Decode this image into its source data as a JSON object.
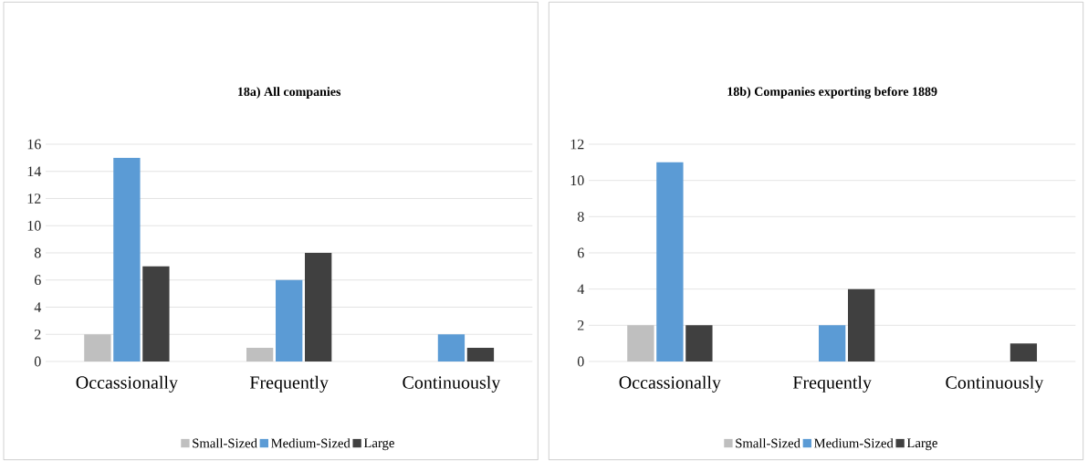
{
  "chart_data": [
    {
      "type": "bar",
      "title": "18a) All companies",
      "categories": [
        "Occassionally",
        "Frequently",
        "Continuously"
      ],
      "series": [
        {
          "name": "Small-Sized",
          "color": "#bfbfbf",
          "values": [
            2,
            1,
            null
          ]
        },
        {
          "name": "Medium-Sized",
          "color": "#5b9bd5",
          "values": [
            15,
            6,
            2
          ]
        },
        {
          "name": "Large",
          "color": "#404040",
          "values": [
            7,
            8,
            1
          ]
        }
      ],
      "ylim": [
        0,
        16
      ],
      "yticks": [
        0,
        2,
        4,
        6,
        8,
        10,
        12,
        14,
        16
      ],
      "grid": "y",
      "legend": "bottom"
    },
    {
      "type": "bar",
      "title": "18b) Companies exporting before 1889",
      "categories": [
        "Occassionally",
        "Frequently",
        "Continuously"
      ],
      "series": [
        {
          "name": "Small-Sized",
          "color": "#bfbfbf",
          "values": [
            2,
            null,
            null
          ]
        },
        {
          "name": "Medium-Sized",
          "color": "#5b9bd5",
          "values": [
            11,
            2,
            null
          ]
        },
        {
          "name": "Large",
          "color": "#404040",
          "values": [
            2,
            4,
            1
          ]
        }
      ],
      "ylim": [
        0,
        12
      ],
      "yticks": [
        0,
        2,
        4,
        6,
        8,
        10,
        12
      ],
      "grid": "y",
      "legend": "bottom"
    }
  ]
}
